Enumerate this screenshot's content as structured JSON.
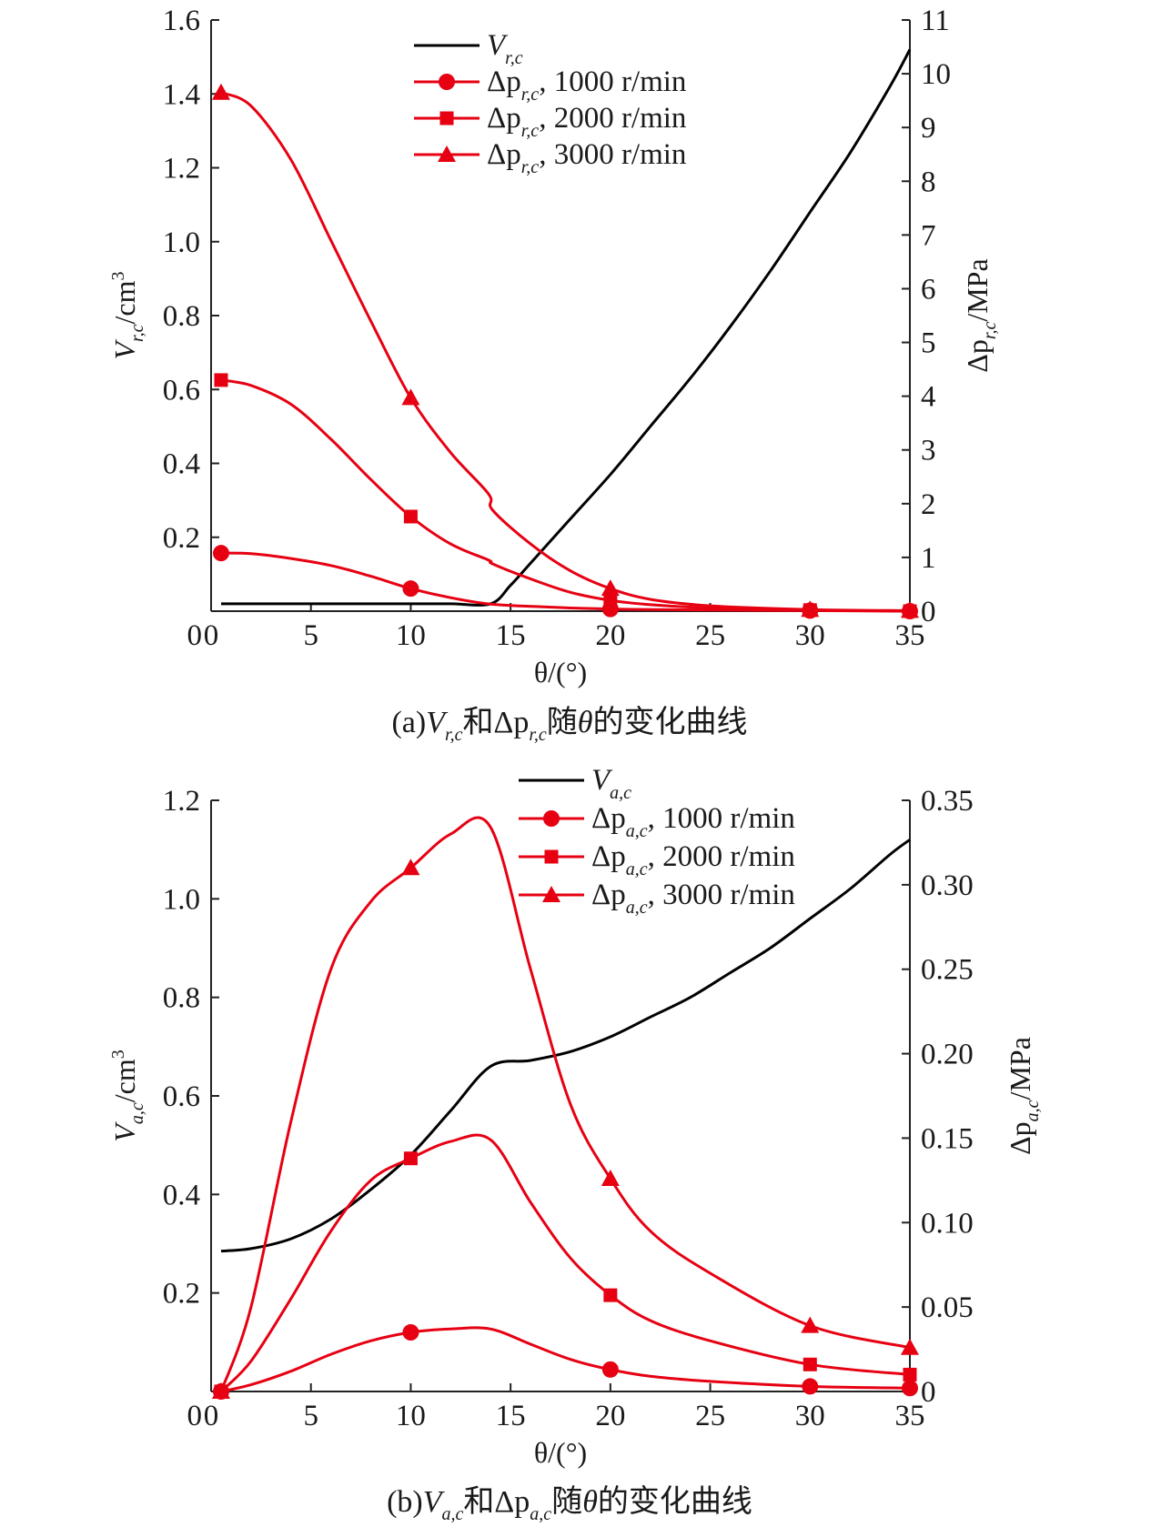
{
  "chart_data": [
    {
      "type": "line",
      "caption": "(a)V_{r,c}和Δp_{r,c}随θ的变化曲线",
      "caption_parts": {
        "prefix": "(a)",
        "v_main": "V",
        "v_sub": "r,c",
        "mid": "和",
        "p_main": "Δp",
        "p_sub": "r,c",
        "suffix": "随",
        "theta": "θ",
        "end": "的变化曲线"
      },
      "xlabel": "θ/(°)",
      "ylabel_left": {
        "main": "V",
        "sub": "r,c",
        "unit": "/cm",
        "sup": "3"
      },
      "ylabel_right": {
        "main": "Δp",
        "sub": "r,c",
        "unit": "/MPa"
      },
      "xlim": [
        0,
        35
      ],
      "ylim_left": [
        0,
        1.6
      ],
      "ylim_right": [
        0,
        11
      ],
      "x_ticks": [
        "0",
        "5",
        "10",
        "15",
        "20",
        "25",
        "30",
        "35"
      ],
      "y_ticks_left": [
        "0.2",
        "0.4",
        "0.6",
        "0.8",
        "1.0",
        "1.2",
        "1.4",
        "1.6"
      ],
      "y_ticks_right": [
        "0",
        "1",
        "2",
        "3",
        "4",
        "5",
        "6",
        "7",
        "8",
        "9",
        "10",
        "11"
      ],
      "grid": false,
      "legend_position": "top-center",
      "series": [
        {
          "name": "V_{r,c}",
          "legend_main": "V",
          "legend_sub": "r,c",
          "legend_rest": "",
          "axis": "left",
          "color": "#000000",
          "marker": "none",
          "x": [
            0.5,
            2,
            4,
            6,
            8,
            10,
            12,
            14,
            15,
            16,
            18,
            20,
            22,
            24,
            26,
            28,
            30,
            32,
            34,
            35
          ],
          "y": [
            0.02,
            0.02,
            0.02,
            0.02,
            0.02,
            0.02,
            0.02,
            0.02,
            0.07,
            0.13,
            0.25,
            0.37,
            0.5,
            0.63,
            0.77,
            0.92,
            1.08,
            1.24,
            1.42,
            1.52
          ]
        },
        {
          "name": "Δp_{r,c}, 1000 r/min",
          "legend_main": "Δp",
          "legend_sub": "r,c",
          "legend_rest": ", 1000 r/min",
          "axis": "right",
          "color": "#e60012",
          "marker": "circle",
          "x": [
            0.5,
            2,
            4,
            6,
            8,
            10,
            12,
            14,
            16,
            18,
            20,
            22,
            25,
            30,
            35
          ],
          "y": [
            1.08,
            1.07,
            0.98,
            0.85,
            0.65,
            0.42,
            0.25,
            0.13,
            0.09,
            0.06,
            0.04,
            0.03,
            0.02,
            0.01,
            0.0
          ]
        },
        {
          "name": "Δp_{r,c}, 2000 r/min",
          "legend_main": "Δp",
          "legend_sub": "r,c",
          "legend_rest": ", 2000 r/min",
          "axis": "right",
          "color": "#e60012",
          "marker": "square",
          "x": [
            0.5,
            2,
            4,
            6,
            8,
            10,
            12,
            13.9,
            14.1,
            16,
            18,
            20,
            22,
            25,
            30,
            35
          ],
          "y": [
            4.3,
            4.2,
            3.85,
            3.2,
            2.45,
            1.76,
            1.25,
            0.95,
            0.88,
            0.6,
            0.35,
            0.2,
            0.12,
            0.06,
            0.02,
            0.0
          ]
        },
        {
          "name": "Δp_{r,c}, 3000 r/min",
          "legend_main": "Δp",
          "legend_sub": "r,c",
          "legend_rest": ", 3000 r/min",
          "axis": "right",
          "color": "#e60012",
          "marker": "triangle",
          "x": [
            0.5,
            2,
            4,
            6,
            8,
            10,
            12,
            13.9,
            14.1,
            16,
            18,
            20,
            22,
            25,
            30,
            35
          ],
          "y": [
            9.65,
            9.4,
            8.4,
            6.9,
            5.4,
            3.97,
            2.95,
            2.18,
            1.88,
            1.25,
            0.75,
            0.42,
            0.22,
            0.1,
            0.03,
            0.01
          ]
        }
      ],
      "marker_points": {
        "x": [
          0.5,
          10,
          20,
          30,
          35
        ]
      }
    },
    {
      "type": "line",
      "caption": "(b)V_{a,c}和Δp_{a,c}随θ的变化曲线",
      "caption_parts": {
        "prefix": "(b)",
        "v_main": "V",
        "v_sub": "a,c",
        "mid": "和",
        "p_main": "Δp",
        "p_sub": "a,c",
        "suffix": "随",
        "theta": "θ",
        "end": "的变化曲线"
      },
      "xlabel": "θ/(°)",
      "ylabel_left": {
        "main": "V",
        "sub": "a,c",
        "unit": "/cm",
        "sup": "3"
      },
      "ylabel_right": {
        "main": "Δp",
        "sub": "a,c",
        "unit": "/MPa"
      },
      "xlim": [
        0,
        35
      ],
      "ylim_left": [
        0,
        1.2
      ],
      "ylim_right": [
        0,
        0.35
      ],
      "x_ticks": [
        "0",
        "5",
        "10",
        "15",
        "20",
        "25",
        "30",
        "35"
      ],
      "y_ticks_left": [
        "0.2",
        "0.4",
        "0.6",
        "0.8",
        "1.0",
        "1.2"
      ],
      "y_ticks_right": [
        "0",
        "0.05",
        "0.10",
        "0.15",
        "0.20",
        "0.25",
        "0.30",
        "0.35"
      ],
      "grid": false,
      "legend_position": "top-right",
      "series": [
        {
          "name": "V_{a,c}",
          "legend_main": "V",
          "legend_sub": "a,c",
          "legend_rest": "",
          "axis": "left",
          "color": "#000000",
          "marker": "none",
          "x": [
            0.5,
            2,
            4,
            6,
            8,
            10,
            12,
            14,
            16,
            18,
            20,
            22,
            24,
            26,
            28,
            30,
            32,
            34,
            35
          ],
          "y": [
            0.285,
            0.29,
            0.31,
            0.35,
            0.41,
            0.48,
            0.57,
            0.66,
            0.672,
            0.69,
            0.72,
            0.76,
            0.8,
            0.85,
            0.9,
            0.96,
            1.02,
            1.09,
            1.12
          ]
        },
        {
          "name": "Δp_{a,c}, 1000 r/min",
          "legend_main": "Δp",
          "legend_sub": "a,c",
          "legend_rest": ", 1000 r/min",
          "axis": "right",
          "color": "#e60012",
          "marker": "circle",
          "x": [
            0.5,
            2,
            4,
            6,
            8,
            10,
            12,
            14,
            16,
            18,
            20,
            22,
            25,
            30,
            35
          ],
          "y": [
            0.0,
            0.004,
            0.012,
            0.022,
            0.03,
            0.035,
            0.037,
            0.037,
            0.028,
            0.019,
            0.013,
            0.009,
            0.006,
            0.003,
            0.002
          ]
        },
        {
          "name": "Δp_{a,c}, 2000 r/min",
          "legend_main": "Δp",
          "legend_sub": "a,c",
          "legend_rest": ", 2000 r/min",
          "axis": "right",
          "color": "#e60012",
          "marker": "square",
          "x": [
            0.5,
            2,
            4,
            6,
            8,
            10,
            12,
            14,
            16,
            18,
            20,
            22,
            25,
            30,
            35
          ],
          "y": [
            0.0,
            0.018,
            0.055,
            0.095,
            0.125,
            0.138,
            0.148,
            0.149,
            0.112,
            0.079,
            0.057,
            0.042,
            0.03,
            0.016,
            0.01
          ]
        },
        {
          "name": "Δp_{a,c}, 3000 r/min",
          "legend_main": "Δp",
          "legend_sub": "a,c",
          "legend_rest": ", 3000 r/min",
          "axis": "right",
          "color": "#e60012",
          "marker": "triangle",
          "x": [
            0.5,
            2,
            4,
            6,
            8,
            10,
            12,
            14,
            16,
            18,
            20,
            22,
            25,
            30,
            35
          ],
          "y": [
            0.0,
            0.05,
            0.16,
            0.25,
            0.29,
            0.31,
            0.33,
            0.334,
            0.25,
            0.17,
            0.126,
            0.095,
            0.07,
            0.039,
            0.026
          ]
        }
      ],
      "marker_points": {
        "x": [
          0.5,
          10,
          20,
          30,
          35
        ]
      }
    }
  ]
}
